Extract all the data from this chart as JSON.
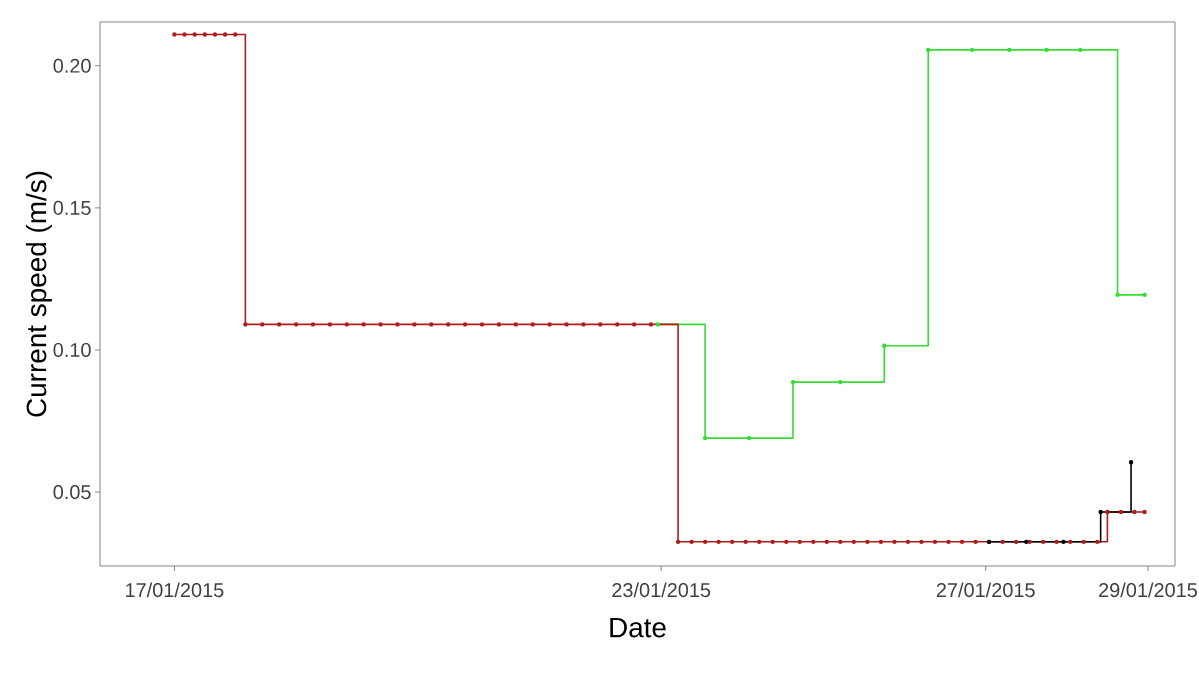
{
  "chart_data": {
    "type": "step",
    "xlabel": "Date",
    "ylabel": "Current speed (m/s)",
    "marker": "circle",
    "line_style": "solid",
    "grid": false,
    "xlim": [
      "2015-01-16T02:00",
      "2015-01-29T08:00"
    ],
    "ylim": [
      0.024,
      0.2154
    ],
    "xticks": [
      {
        "value": "2015-01-17",
        "label": "17/01/2015"
      },
      {
        "value": "2015-01-23",
        "label": "23/01/2015"
      },
      {
        "value": "2015-01-27",
        "label": "27/01/2015"
      },
      {
        "value": "2015-01-29",
        "label": "29/01/2015"
      }
    ],
    "yticks": [
      {
        "value": 0.05,
        "label": "0.05"
      },
      {
        "value": 0.1,
        "label": "0.10"
      },
      {
        "value": 0.15,
        "label": "0.15"
      },
      {
        "value": 0.2,
        "label": "0.20"
      }
    ],
    "series": [
      {
        "color": "#33dd33",
        "x": [
          "2015-01-22T23:00",
          "2015-01-23T13:00",
          "2015-01-24T02:00",
          "2015-01-24T15:00",
          "2015-01-25T05:00",
          "2015-01-25T18:00",
          "2015-01-26T07:00",
          "2015-01-26T20:00",
          "2015-01-27T07:00",
          "2015-01-27T18:00",
          "2015-01-28T04:00",
          "2015-01-28T15:00",
          "2015-01-28T23:00"
        ],
        "values": [
          0.109,
          0.069,
          0.069,
          0.0887,
          0.0887,
          0.1015,
          0.2056,
          0.2056,
          0.2056,
          0.2056,
          0.2056,
          0.1194,
          0.1194
        ]
      },
      {
        "color": "#b01c1c",
        "x": [
          "2015-01-17T00:00",
          "2015-01-17T03:00",
          "2015-01-17T06:00",
          "2015-01-17T09:00",
          "2015-01-17T12:00",
          "2015-01-17T15:00",
          "2015-01-17T18:00",
          "2015-01-17T21:00",
          "2015-01-18T02:00",
          "2015-01-18T07:00",
          "2015-01-18T12:00",
          "2015-01-18T17:00",
          "2015-01-18T22:00",
          "2015-01-19T03:00",
          "2015-01-19T08:00",
          "2015-01-19T13:00",
          "2015-01-19T18:00",
          "2015-01-19T23:00",
          "2015-01-20T04:00",
          "2015-01-20T09:00",
          "2015-01-20T14:00",
          "2015-01-20T19:00",
          "2015-01-21T00:00",
          "2015-01-21T05:00",
          "2015-01-21T10:00",
          "2015-01-21T15:00",
          "2015-01-21T20:00",
          "2015-01-22T01:00",
          "2015-01-22T06:00",
          "2015-01-22T11:00",
          "2015-01-22T16:00",
          "2015-01-22T21:00",
          "2015-01-23T05:00",
          "2015-01-23T09:00",
          "2015-01-23T13:00",
          "2015-01-23T17:00",
          "2015-01-23T21:00",
          "2015-01-24T01:00",
          "2015-01-24T05:00",
          "2015-01-24T09:00",
          "2015-01-24T13:00",
          "2015-01-24T17:00",
          "2015-01-24T21:00",
          "2015-01-25T01:00",
          "2015-01-25T05:00",
          "2015-01-25T09:00",
          "2015-01-25T13:00",
          "2015-01-25T17:00",
          "2015-01-25T21:00",
          "2015-01-26T01:00",
          "2015-01-26T05:00",
          "2015-01-26T09:00",
          "2015-01-26T13:00",
          "2015-01-26T17:00",
          "2015-01-26T21:00",
          "2015-01-27T01:00",
          "2015-01-27T05:00",
          "2015-01-27T09:00",
          "2015-01-27T13:00",
          "2015-01-27T17:00",
          "2015-01-27T21:00",
          "2015-01-28T01:00",
          "2015-01-28T05:00",
          "2015-01-28T09:00",
          "2015-01-28T12:00",
          "2015-01-28T16:00",
          "2015-01-28T20:00",
          "2015-01-28T23:00"
        ],
        "values": [
          0.211,
          0.211,
          0.211,
          0.211,
          0.211,
          0.211,
          0.211,
          0.109,
          0.109,
          0.109,
          0.109,
          0.109,
          0.109,
          0.109,
          0.109,
          0.109,
          0.109,
          0.109,
          0.109,
          0.109,
          0.109,
          0.109,
          0.109,
          0.109,
          0.109,
          0.109,
          0.109,
          0.109,
          0.109,
          0.109,
          0.109,
          0.109,
          0.0325,
          0.0325,
          0.0325,
          0.0325,
          0.0325,
          0.0325,
          0.0325,
          0.0325,
          0.0325,
          0.0325,
          0.0325,
          0.0325,
          0.0325,
          0.0325,
          0.0325,
          0.0325,
          0.0325,
          0.0325,
          0.0325,
          0.0325,
          0.0325,
          0.0325,
          0.0325,
          0.0325,
          0.0325,
          0.0325,
          0.0325,
          0.0325,
          0.0325,
          0.0325,
          0.0325,
          0.0325,
          0.043,
          0.043,
          0.043,
          0.043
        ]
      },
      {
        "color": "#000000",
        "x": [
          "2015-01-27T01:00",
          "2015-01-27T12:00",
          "2015-01-27T23:00",
          "2015-01-28T10:00",
          "2015-01-28T19:00"
        ],
        "values": [
          0.0325,
          0.0325,
          0.0325,
          0.043,
          0.0605
        ]
      }
    ]
  }
}
